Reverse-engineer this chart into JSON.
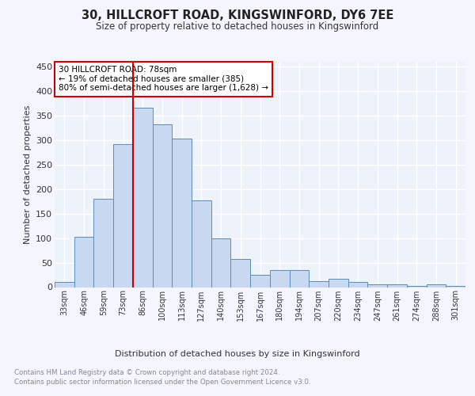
{
  "title1": "30, HILLCROFT ROAD, KINGSWINFORD, DY6 7EE",
  "title2": "Size of property relative to detached houses in Kingswinford",
  "xlabel": "Distribution of detached houses by size in Kingswinford",
  "ylabel": "Number of detached properties",
  "categories": [
    "33sqm",
    "46sqm",
    "59sqm",
    "73sqm",
    "86sqm",
    "100sqm",
    "113sqm",
    "127sqm",
    "140sqm",
    "153sqm",
    "167sqm",
    "180sqm",
    "194sqm",
    "207sqm",
    "220sqm",
    "234sqm",
    "247sqm",
    "261sqm",
    "274sqm",
    "288sqm",
    "301sqm"
  ],
  "values": [
    10,
    103,
    180,
    291,
    365,
    331,
    303,
    177,
    100,
    57,
    25,
    35,
    35,
    12,
    17,
    10,
    6,
    6,
    2,
    5,
    3
  ],
  "bar_color": "#c8d8f0",
  "bar_edge_color": "#5b8db8",
  "vline_color": "#cc0000",
  "annotation_text": "30 HILLCROFT ROAD: 78sqm\n← 19% of detached houses are smaller (385)\n80% of semi-detached houses are larger (1,628) →",
  "annotation_box_color": "#cc0000",
  "ylim": [
    0,
    460
  ],
  "yticks": [
    0,
    50,
    100,
    150,
    200,
    250,
    300,
    350,
    400,
    450
  ],
  "background_color": "#eef2fb",
  "grid_color": "#ffffff",
  "fig_bg_color": "#f5f5ff",
  "footer_text": "Contains HM Land Registry data © Crown copyright and database right 2024.\nContains public sector information licensed under the Open Government Licence v3.0."
}
